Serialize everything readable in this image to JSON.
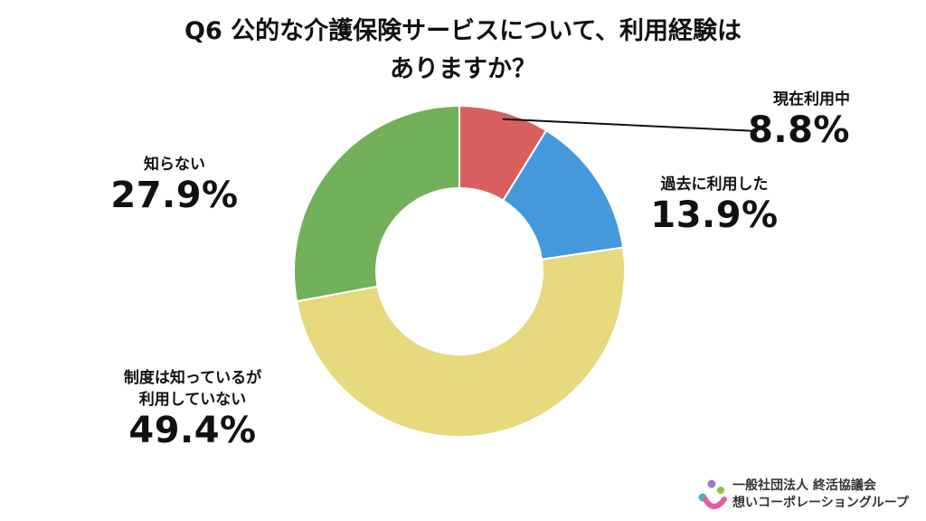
{
  "title": {
    "line1": "Q6 公的な介護保険サービスについて、利用経験は",
    "line2": "ありますか？"
  },
  "chart_data": {
    "type": "pie",
    "donut": true,
    "start_angle_deg": 0,
    "direction": "clockwise",
    "slices": [
      {
        "key": "current",
        "label": "現在利用中",
        "value": 8.8,
        "display": "8.8%",
        "color": "#d95f5f"
      },
      {
        "key": "past",
        "label": "過去に利用した",
        "value": 13.9,
        "display": "13.9%",
        "color": "#4499dd"
      },
      {
        "key": "aware",
        "label_lines": [
          "制度は知っているが",
          "利用していない"
        ],
        "value": 49.4,
        "display": "49.4%",
        "color": "#e6d97e"
      },
      {
        "key": "unknown",
        "label": "知らない",
        "value": 27.9,
        "display": "27.9%",
        "color": "#72b05a"
      }
    ]
  },
  "logo": {
    "line1": "一般社団法人 終活協議会",
    "line2": "想いコーポレーショングループ",
    "colors": {
      "purple": "#a57bc4",
      "teal": "#35bcc7",
      "green": "#8cc63f",
      "pink": "#e85aa0"
    }
  }
}
